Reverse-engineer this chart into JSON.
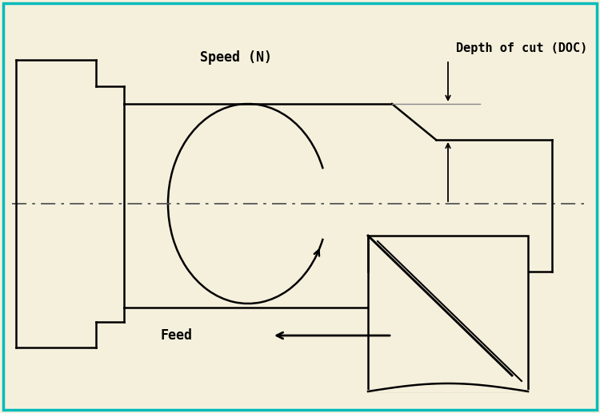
{
  "bg_color": "#f5f0dc",
  "border_color": "#00bbbb",
  "line_color": "#000000",
  "figsize": [
    7.5,
    5.17
  ],
  "dpi": 100,
  "label_speed": "Speed (N)",
  "label_feed": "Feed",
  "label_doc": "Depth of cut (DOC)",
  "font_family": "DejaVu Sans Mono"
}
